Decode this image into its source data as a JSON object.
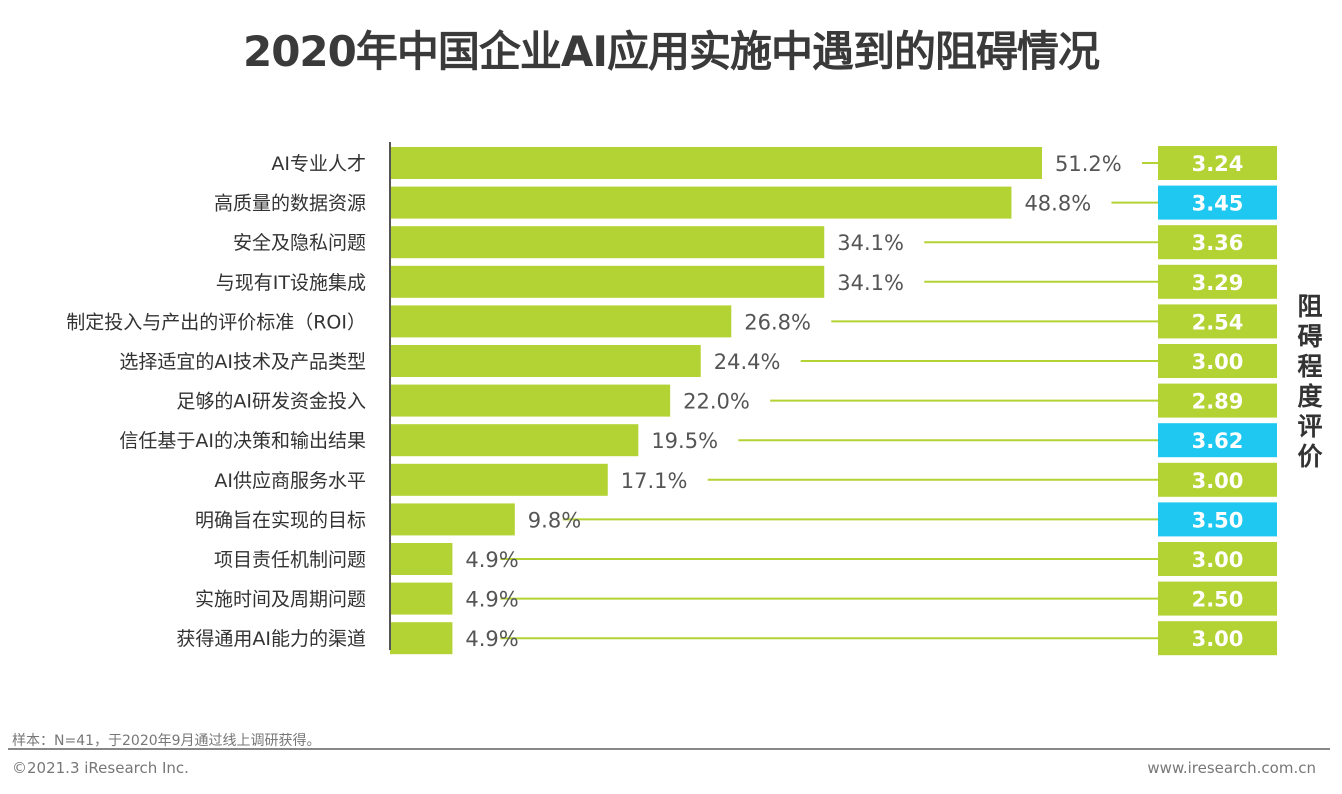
{
  "title": "2020年中国企业AI应用实施中遇到的阻碍情况",
  "chart_data": {
    "type": "bar",
    "orientation": "horizontal",
    "categories": [
      "AI专业人才",
      "高质量的数据资源",
      "安全及隐私问题",
      "与现有IT设施集成",
      "制定投入与产出的评价标准（ROI）",
      "选择适宜的AI技术及产品类型",
      "足够的AI研发资金投入",
      "信任基于AI的决策和输出结果",
      "AI供应商服务水平",
      "明确旨在实现的目标",
      "项目责任机制问题",
      "实施时间及周期问题",
      "获得通用AI能力的渠道"
    ],
    "values": [
      51.2,
      48.8,
      34.1,
      34.1,
      26.8,
      24.4,
      22.0,
      19.5,
      17.1,
      9.8,
      4.9,
      4.9,
      4.9
    ],
    "value_labels": [
      "51.2%",
      "48.8%",
      "34.1%",
      "34.1%",
      "26.8%",
      "24.4%",
      "22.0%",
      "19.5%",
      "17.1%",
      "9.8%",
      "4.9%",
      "4.9%",
      "4.9%"
    ],
    "scores": [
      "3.24",
      "3.45",
      "3.36",
      "3.29",
      "2.54",
      "3.00",
      "2.89",
      "3.62",
      "3.00",
      "3.50",
      "3.00",
      "2.50",
      "3.00"
    ],
    "score_highlight": [
      false,
      true,
      false,
      false,
      false,
      false,
      false,
      true,
      false,
      true,
      false,
      false,
      false
    ],
    "score_axis_label": "阻碍程度评价",
    "xlim": [
      0,
      52
    ],
    "grid": false,
    "colors": {
      "bar": "#b3d233",
      "score_default": "#b3d233",
      "score_highlight": "#1ec8f0",
      "axis": "#555555"
    }
  },
  "footer": {
    "note": "样本：N=41，于2020年9月通过线上调研获得。",
    "copyright": "©2021.3 iResearch Inc.",
    "site": "www.iresearch.com.cn"
  }
}
